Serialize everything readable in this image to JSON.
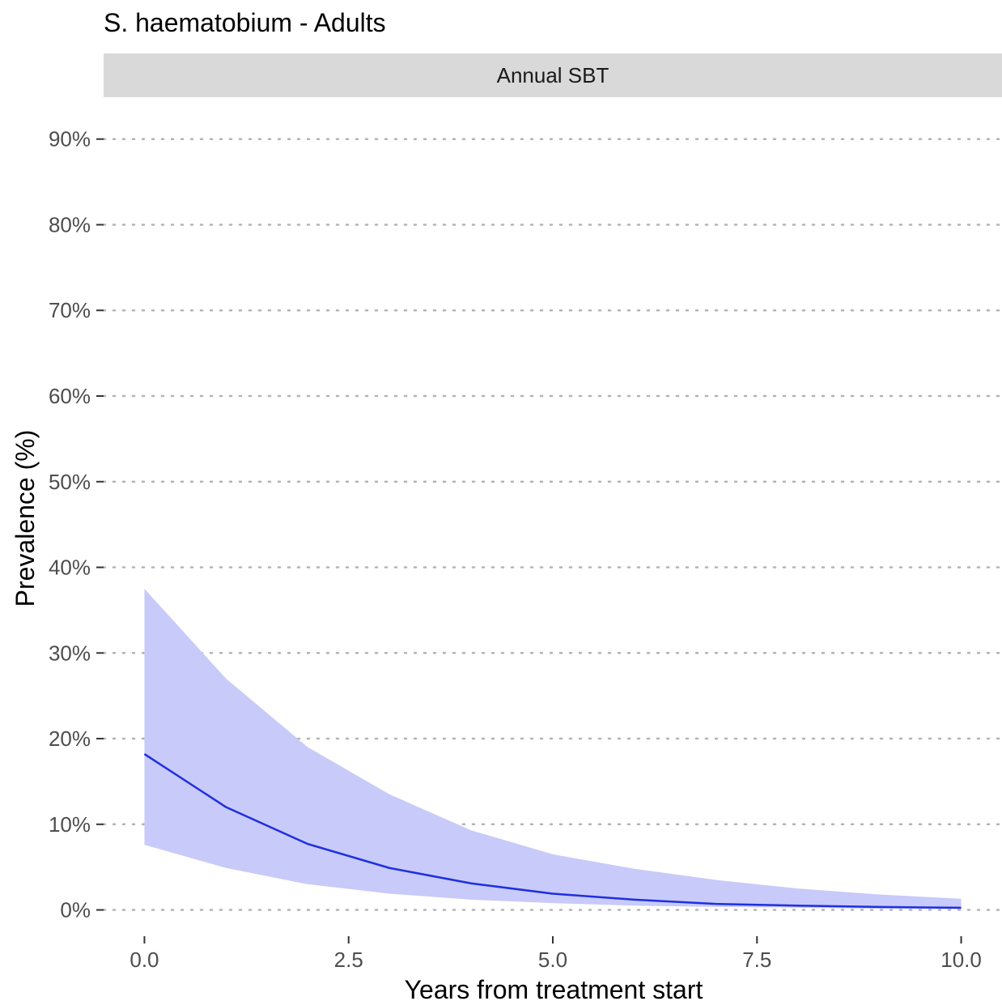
{
  "chart_data": {
    "type": "line",
    "title": "S. haematobium - Adults",
    "facet": "Annual SBT",
    "xlabel": "Years from treatment start",
    "ylabel": "Prevalence (%)",
    "xlim": [
      -0.5,
      10.5
    ],
    "ylim": [
      -2.5,
      93
    ],
    "x_ticks": [
      0,
      2.5,
      5,
      7.5,
      10
    ],
    "x_tick_labels": [
      "0.0",
      "2.5",
      "5.0",
      "7.5",
      "10.0"
    ],
    "y_ticks": [
      0,
      10,
      20,
      30,
      40,
      50,
      60,
      70,
      80,
      90
    ],
    "y_tick_labels": [
      "0%",
      "10%",
      "20%",
      "30%",
      "40%",
      "50%",
      "60%",
      "70%",
      "80%",
      "90%"
    ],
    "grid": "horizontal-dotted",
    "x": [
      0,
      1,
      2,
      3,
      4,
      5,
      6,
      7,
      8,
      9,
      10
    ],
    "series": [
      {
        "values": [
          18.2,
          12.0,
          7.7,
          4.9,
          3.1,
          1.9,
          1.2,
          0.7,
          0.5,
          0.35,
          0.25
        ],
        "color": "#1f2fe0"
      }
    ],
    "ribbon": {
      "lower": [
        7.6,
        4.9,
        3.0,
        1.9,
        1.2,
        0.8,
        0.5,
        0.35,
        0.25,
        0.15,
        0.1
      ],
      "upper": [
        37.5,
        27.0,
        19.0,
        13.5,
        9.3,
        6.5,
        4.8,
        3.5,
        2.5,
        1.8,
        1.3
      ],
      "color": "#c8caf9"
    }
  }
}
